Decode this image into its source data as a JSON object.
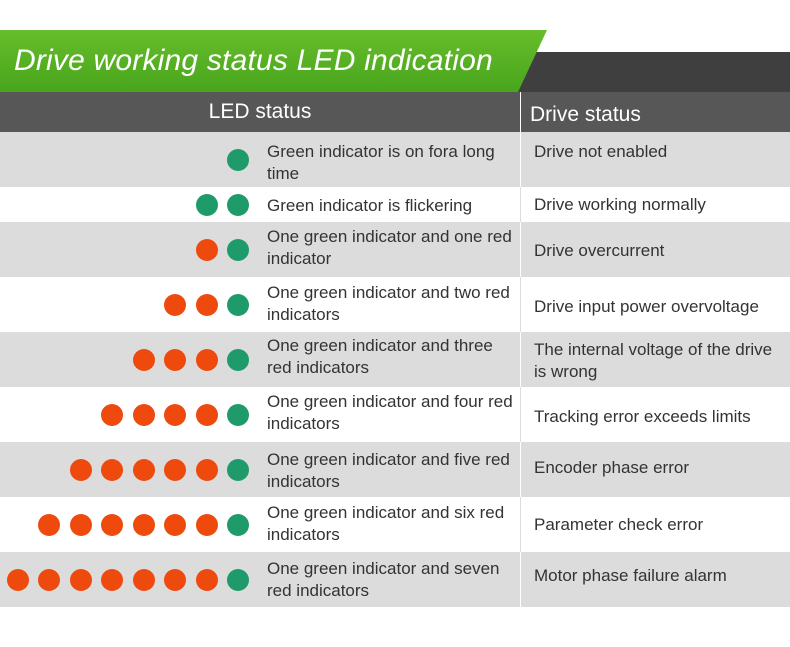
{
  "title": "Drive working status LED indication",
  "header": {
    "led_status": "LED status",
    "drive_status": "Drive status"
  },
  "colors": {
    "green_led": "#1f9a6b",
    "red_led": "#ee4a0e",
    "banner_green": "#55ad22",
    "header_gray": "#575757",
    "row_shade": "#dcdcdc"
  },
  "rows": [
    {
      "green": 1,
      "red": 0,
      "description": "Green indicator is on fora long time",
      "drive_status": "Drive not enabled"
    },
    {
      "green": 2,
      "red": 0,
      "description": "Green indicator is flickering",
      "drive_status": "Drive working normally"
    },
    {
      "green": 1,
      "red": 1,
      "description": "One green indicator and one red indicator",
      "drive_status": "Drive overcurrent"
    },
    {
      "green": 1,
      "red": 2,
      "description": "One green indicator and two red indicators",
      "drive_status": "Drive input power overvoltage"
    },
    {
      "green": 1,
      "red": 3,
      "description": "One green indicator and three red indicators",
      "drive_status": "The internal voltage of the drive is wrong"
    },
    {
      "green": 1,
      "red": 4,
      "description": "One green indicator and four red indicators",
      "drive_status": "Tracking error exceeds limits"
    },
    {
      "green": 1,
      "red": 5,
      "description": "One green indicator and five red indicators",
      "drive_status": "Encoder phase error"
    },
    {
      "green": 1,
      "red": 6,
      "description": "One green indicator and six red indicators",
      "drive_status": "Parameter check error"
    },
    {
      "green": 1,
      "red": 7,
      "description": "One green indicator and seven red indicators",
      "drive_status": "Motor phase failure alarm"
    }
  ]
}
